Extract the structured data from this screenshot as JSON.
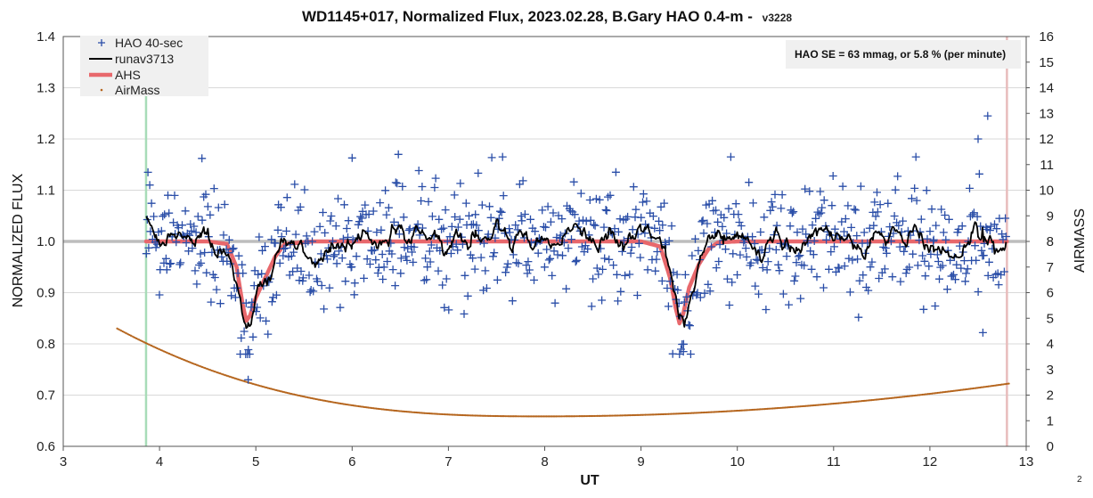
{
  "chart_data": {
    "type": "scatter",
    "title": "WD1145+017, Normalized Flux, 2023.02.28, B.Gary HAO 0.4-m -",
    "version": "v3228",
    "xlabel": "UT",
    "ylabel": "NORMALIZED FLUX",
    "y2label": "AIRMASS",
    "xlim": [
      3,
      13
    ],
    "ylim": [
      0.6,
      1.4
    ],
    "y2lim": [
      0,
      16
    ],
    "xticks": [
      "3",
      "4",
      "5",
      "6",
      "7",
      "8",
      "9",
      "10",
      "11",
      "12",
      "13"
    ],
    "yticks": [
      "0.6",
      "0.7",
      "0.8",
      "0.9",
      "1.0",
      "1.1",
      "1.2",
      "1.3",
      "1.4"
    ],
    "y2ticks": [
      "0",
      "1",
      "2",
      "3",
      "4",
      "5",
      "6",
      "7",
      "8",
      "9",
      "10",
      "11",
      "12",
      "13",
      "14",
      "15",
      "16"
    ],
    "grid": "horizontal",
    "legend_position": "top-left",
    "note": "HAO SE =  63 mmag, or 5.8 % (per minute)",
    "page_number": "2",
    "vertical_markers": [
      {
        "x": 3.86,
        "color": "#a8dcb8"
      },
      {
        "x": 12.8,
        "color": "#e8bcbc"
      }
    ],
    "series": [
      {
        "name": "HAO 40-sec",
        "kind": "scatter",
        "marker": "+",
        "color": "#2a4ea8",
        "x_start": 3.86,
        "x_end": 12.8,
        "point_count": 800,
        "noise_sigma": 0.058,
        "outliers": [
          {
            "x": 3.88,
            "y": 1.135
          },
          {
            "x": 4.44,
            "y": 1.162
          },
          {
            "x": 6.0,
            "y": 1.163
          },
          {
            "x": 6.48,
            "y": 1.17
          },
          {
            "x": 12.5,
            "y": 1.2
          },
          {
            "x": 12.6,
            "y": 1.245
          },
          {
            "x": 4.92,
            "y": 0.73
          },
          {
            "x": 9.4,
            "y": 0.78
          },
          {
            "x": 9.44,
            "y": 0.785
          },
          {
            "x": 12.55,
            "y": 0.822
          }
        ]
      },
      {
        "name": "runav3713",
        "kind": "line",
        "color": "#000000",
        "x_start": 3.86,
        "x_end": 12.8
      },
      {
        "name": "AHS",
        "kind": "line",
        "color": "#e8686c",
        "x": [
          3.86,
          4.5,
          4.7,
          4.8,
          4.86,
          4.9,
          4.94,
          5.0,
          5.1,
          5.2,
          5.3,
          5.6,
          9.0,
          9.2,
          9.3,
          9.36,
          9.4,
          9.44,
          9.5,
          9.6,
          9.7,
          9.8,
          10.0,
          12.8
        ],
        "y": [
          1.0,
          1.0,
          0.995,
          0.95,
          0.88,
          0.845,
          0.855,
          0.89,
          0.93,
          0.97,
          0.995,
          1.0,
          1.0,
          0.99,
          0.93,
          0.87,
          0.84,
          0.86,
          0.91,
          0.955,
          0.985,
          0.998,
          1.0,
          1.0
        ]
      },
      {
        "name": "AirMass",
        "kind": "scatter",
        "marker": "dot",
        "axis": "y2",
        "color": "#b5651d",
        "x_start": 3.56,
        "x_end": 12.82,
        "x_min_airmass": 8.0,
        "airmass_min": 1.17,
        "airmass_start": 4.6,
        "airmass_end": 2.45
      }
    ]
  }
}
